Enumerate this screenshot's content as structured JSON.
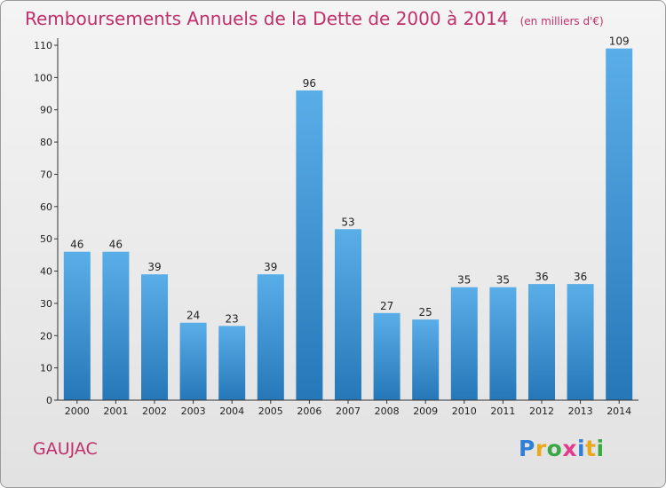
{
  "header": {
    "title": "Remboursements Annuels de la Dette de 2000 à 2014",
    "unit": "(en milliers d'€)"
  },
  "footer": {
    "city": "GAUJAC",
    "logo_letters": [
      "P",
      "r",
      "o",
      "x",
      "i",
      "t",
      "i"
    ],
    "logo_colors": [
      "#2f7fd8",
      "#e8a91a",
      "#3aa844",
      "#e23a8c",
      "#2f7fd8",
      "#e8a91a",
      "#3aa844"
    ]
  },
  "chart_data": {
    "type": "bar",
    "title": "Remboursements Annuels de la Dette de 2000 à 2014",
    "xlabel": "",
    "ylabel": "",
    "categories": [
      "2000",
      "2001",
      "2002",
      "2003",
      "2004",
      "2005",
      "2006",
      "2007",
      "2008",
      "2009",
      "2010",
      "2011",
      "2012",
      "2013",
      "2014"
    ],
    "values": [
      46,
      46,
      39,
      24,
      23,
      39,
      96,
      53,
      27,
      25,
      35,
      35,
      36,
      36,
      109
    ],
    "ylim": [
      0,
      110
    ],
    "yticks": [
      0,
      10,
      20,
      30,
      40,
      50,
      60,
      70,
      80,
      90,
      100,
      110
    ],
    "grid": false,
    "bar_color": "#3f97d8"
  }
}
